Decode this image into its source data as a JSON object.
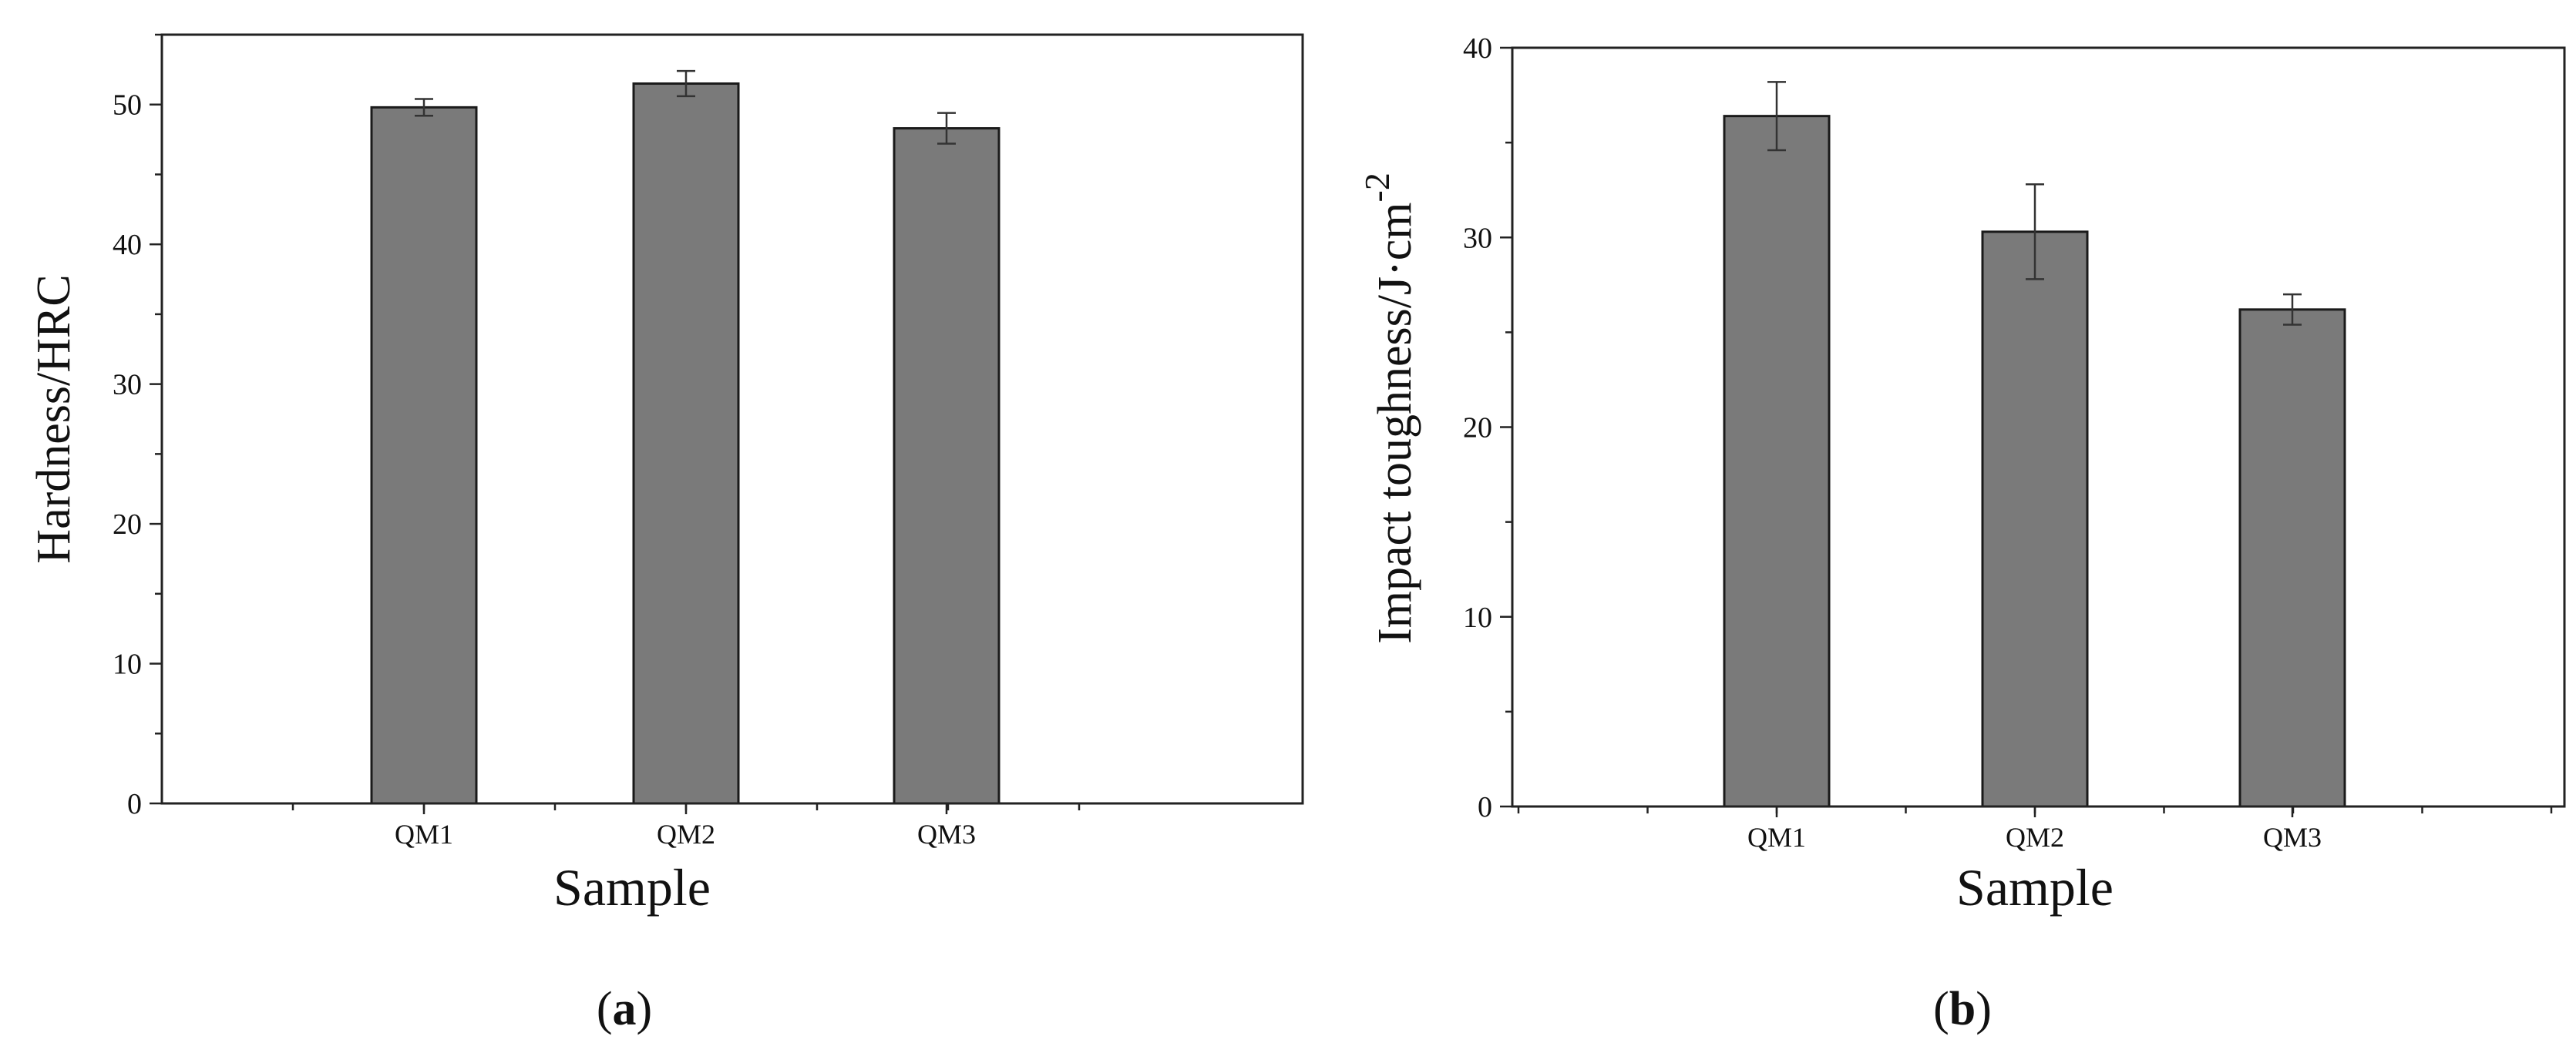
{
  "chart_data": [
    {
      "type": "bar",
      "panel_label": "(a)",
      "categories": [
        "QM1",
        "QM2",
        "QM3"
      ],
      "values": [
        49.8,
        51.5,
        48.3
      ],
      "errors": [
        0.6,
        0.9,
        1.1
      ],
      "xlabel": "Sample",
      "ylabel": "Hardness/HRC",
      "ylim": [
        0,
        55
      ],
      "yticks": [
        0,
        10,
        20,
        30,
        40,
        50
      ],
      "bar_color": "#7a7a7a",
      "grid": false
    },
    {
      "type": "bar",
      "panel_label": "(b)",
      "categories": [
        "QM1",
        "QM2",
        "QM3"
      ],
      "values": [
        36.4,
        30.3,
        26.2
      ],
      "errors": [
        1.8,
        2.5,
        0.8
      ],
      "xlabel": "Sample",
      "ylabel": "Impact toughness/J·cm",
      "ylabel_superscript": "-2",
      "ylim": [
        0,
        40
      ],
      "yticks": [
        0,
        10,
        20,
        30,
        40
      ],
      "bar_color": "#7a7a7a",
      "grid": false
    }
  ]
}
